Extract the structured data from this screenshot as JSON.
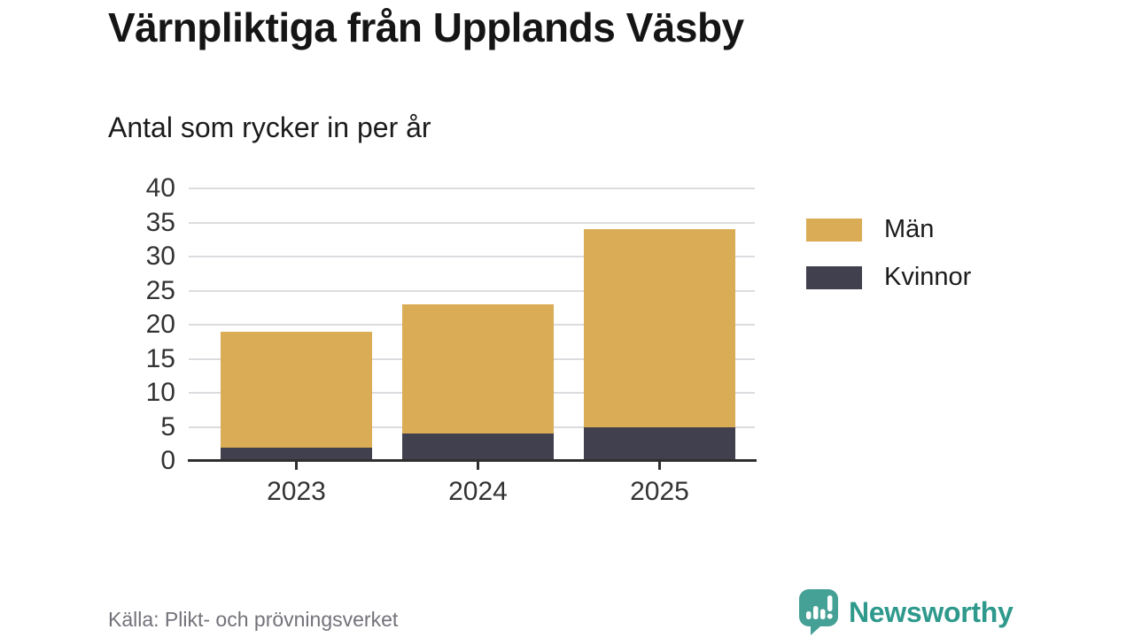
{
  "header": {
    "title": "Värnpliktiga från Upplands Väsby",
    "subtitle": "Antal som rycker in per år"
  },
  "footer": {
    "source": "Källa: Plikt- och prövningsverket",
    "brand_name": "Newsworthy"
  },
  "colors": {
    "men": "#d9ac55",
    "women": "#41404e",
    "grid": "#dcdce0",
    "axis": "#2f2f2f",
    "tick_text": "#333333",
    "source_text": "#72727a",
    "brand_teal": "#2e998c"
  },
  "chart_data": {
    "type": "bar",
    "stacked": true,
    "title": "Värnpliktiga från Upplands Väsby",
    "subtitle": "Antal som rycker in per år",
    "categories": [
      "2023",
      "2024",
      "2025"
    ],
    "series": [
      {
        "name": "Män",
        "color": "#d9ac55",
        "values": [
          17,
          19,
          29
        ]
      },
      {
        "name": "Kvinnor",
        "color": "#41404e",
        "values": [
          2,
          4,
          5
        ]
      }
    ],
    "stack_bottom_to_top": [
      "Kvinnor",
      "Män"
    ],
    "stack_totals": [
      19,
      23,
      34
    ],
    "ylim": [
      0,
      40
    ],
    "yticks": [
      0,
      5,
      10,
      15,
      20,
      25,
      30,
      35,
      40
    ],
    "xlabel": "",
    "ylabel": "",
    "grid": true,
    "legend_position": "right",
    "legend": [
      {
        "label": "Män",
        "color": "#d9ac55"
      },
      {
        "label": "Kvinnor",
        "color": "#41404e"
      }
    ]
  }
}
